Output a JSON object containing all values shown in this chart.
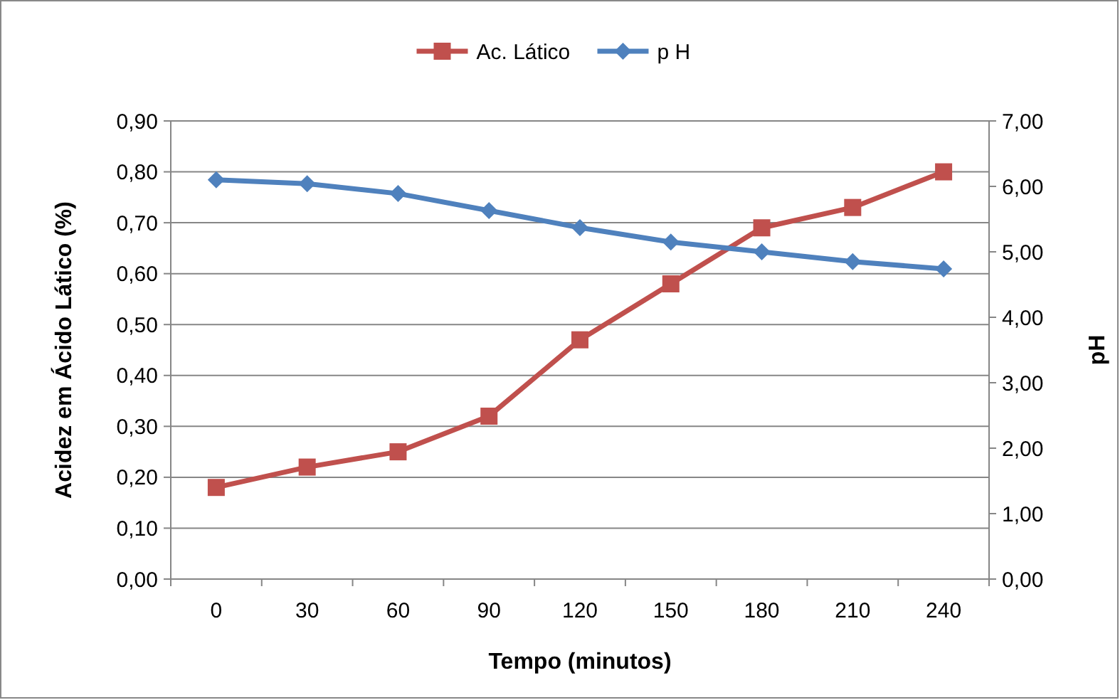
{
  "chart_data": {
    "type": "line",
    "xlabel": "Tempo (minutos)",
    "ylabel": "Acidez em Ácido Lático (%)",
    "y2label": "pH",
    "categories": [
      "0",
      "30",
      "60",
      "90",
      "120",
      "150",
      "180",
      "210",
      "240"
    ],
    "series": [
      {
        "name": "Ac. Lático",
        "color": "#c0504d",
        "marker": "square",
        "values": [
          0.18,
          0.22,
          0.25,
          0.32,
          0.47,
          0.58,
          0.69,
          0.73,
          0.8
        ]
      },
      {
        "name": "p H",
        "color": "#4f81bd",
        "marker": "diamond",
        "axis": "y2",
        "values": [
          6.1,
          6.04,
          5.89,
          5.63,
          5.37,
          5.15,
          5.0,
          4.85,
          4.74
        ]
      }
    ],
    "ylim": [
      0,
      0.9
    ],
    "yticks": [
      {
        "value": 0,
        "label": "0,00"
      },
      {
        "value": 0.1,
        "label": "0,10"
      },
      {
        "value": 0.2,
        "label": "0,20"
      },
      {
        "value": 0.3,
        "label": "0,30"
      },
      {
        "value": 0.4,
        "label": "0,40"
      },
      {
        "value": 0.5,
        "label": "0,50"
      },
      {
        "value": 0.6,
        "label": "0,60"
      },
      {
        "value": 0.7,
        "label": "0,70"
      },
      {
        "value": 0.8,
        "label": "0,80"
      },
      {
        "value": 0.9,
        "label": "0,90"
      }
    ],
    "y2lim": [
      0,
      7
    ],
    "y2ticks": [
      {
        "value": 0,
        "label": "0,00"
      },
      {
        "value": 1,
        "label": "1,00"
      },
      {
        "value": 2,
        "label": "2,00"
      },
      {
        "value": 3,
        "label": "3,00"
      },
      {
        "value": 4,
        "label": "4,00"
      },
      {
        "value": 5,
        "label": "5,00"
      },
      {
        "value": 6,
        "label": "6,00"
      },
      {
        "value": 7,
        "label": "7,00"
      }
    ],
    "grid": "y",
    "legend": "top",
    "line_style": "solid"
  }
}
